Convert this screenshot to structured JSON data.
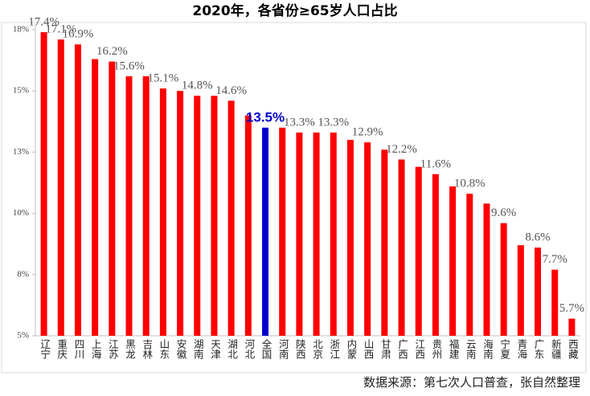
{
  "chart_data": {
    "type": "bar",
    "title": "2020年，各省份≥65岁人口占比",
    "source": "数据来源：第七次人口普查，张自然整理",
    "categories": [
      "辽宁",
      "重庆",
      "四川",
      "上海",
      "江苏",
      "黑龙",
      "吉林",
      "山东",
      "安徽",
      "湖南",
      "天津",
      "湖北",
      "河北",
      "全国",
      "河南",
      "陕西",
      "北京",
      "浙江",
      "内蒙",
      "山西",
      "甘肃",
      "广西",
      "江西",
      "贵州",
      "福建",
      "云南",
      "海南",
      "宁夏",
      "青海",
      "广东",
      "新疆",
      "西藏"
    ],
    "values": [
      17.4,
      17.1,
      16.9,
      16.3,
      16.2,
      15.6,
      15.6,
      15.1,
      15.0,
      14.8,
      14.8,
      14.6,
      14.0,
      13.5,
      13.5,
      13.3,
      13.3,
      13.3,
      13.0,
      12.9,
      12.6,
      12.2,
      11.9,
      11.6,
      11.1,
      10.8,
      10.4,
      9.6,
      8.7,
      8.6,
      7.7,
      5.7
    ],
    "value_labels": [
      "17.4%",
      "17.1%",
      "16.9%",
      null,
      "16.2%",
      "15.6%",
      null,
      "15.1%",
      null,
      "14.8%",
      null,
      "14.6%",
      null,
      "13.5%",
      null,
      "13.3%",
      null,
      "13.3%",
      null,
      "12.9%",
      null,
      "12.2%",
      null,
      "11.6%",
      null,
      "10.8%",
      null,
      "9.6%",
      null,
      "8.6%",
      "7.7%",
      "5.7%"
    ],
    "color": "#ff0000",
    "colors": [
      "#ff0000",
      "#ff0000",
      "#ff0000",
      "#ff0000",
      "#ff0000",
      "#ff0000",
      "#ff0000",
      "#ff0000",
      "#ff0000",
      "#ff0000",
      "#ff0000",
      "#ff0000",
      "#ff0000",
      "#0000cc",
      "#ff0000",
      "#ff0000",
      "#ff0000",
      "#ff0000",
      "#ff0000",
      "#ff0000",
      "#ff0000",
      "#ff0000",
      "#ff0000",
      "#ff0000",
      "#ff0000",
      "#ff0000",
      "#ff0000",
      "#ff0000",
      "#ff0000",
      "#ff0000",
      "#ff0000",
      "#ff0000"
    ],
    "ylim": [
      5,
      17.5
    ],
    "yticks": [
      {
        "value": 5,
        "label": "5%"
      },
      {
        "value": 7.5,
        "label": "8%"
      },
      {
        "value": 10,
        "label": "10%"
      },
      {
        "value": 12.5,
        "label": "13%"
      },
      {
        "value": 15,
        "label": "15%"
      },
      {
        "value": 17.5,
        "label": "18%"
      }
    ],
    "grid": false
  }
}
